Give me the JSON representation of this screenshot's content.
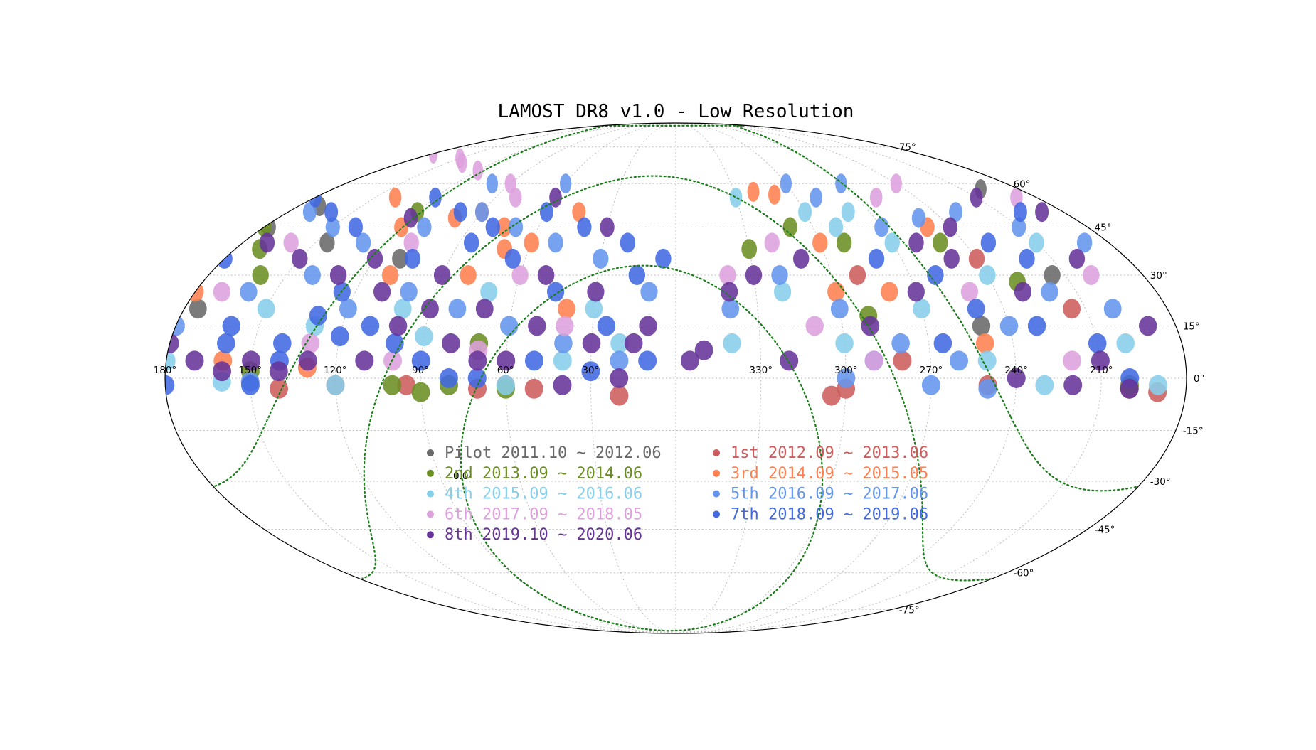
{
  "chart_data": {
    "type": "scatter",
    "projection": "mollweide",
    "title": "LAMOST DR8 v1.0 - Low Resolution",
    "grid": true,
    "galactic_plane_label": "0.0",
    "lon_ticks": [
      {
        "value": 330,
        "label": "330°"
      },
      {
        "value": 300,
        "label": "300°"
      },
      {
        "value": 270,
        "label": "270°"
      },
      {
        "value": 240,
        "label": "240°"
      },
      {
        "value": 210,
        "label": "210°"
      },
      {
        "value": 180,
        "label": "180°"
      },
      {
        "value": 150,
        "label": "150°"
      },
      {
        "value": 120,
        "label": "120°"
      },
      {
        "value": 90,
        "label": "90°"
      },
      {
        "value": 60,
        "label": "60°"
      },
      {
        "value": 30,
        "label": "30°"
      }
    ],
    "lat_ticks": [
      {
        "value": 75,
        "label": "75°"
      },
      {
        "value": 60,
        "label": "60°"
      },
      {
        "value": 45,
        "label": "45°"
      },
      {
        "value": 30,
        "label": "30°"
      },
      {
        "value": 15,
        "label": "15°"
      },
      {
        "value": 0,
        "label": "0°"
      },
      {
        "value": -15,
        "label": "-15°"
      },
      {
        "value": -30,
        "label": "-30°"
      },
      {
        "value": -45,
        "label": "-45°"
      },
      {
        "value": -60,
        "label": "-60°"
      },
      {
        "value": -75,
        "label": "-75°"
      }
    ],
    "legend_placement": "center",
    "series": [
      {
        "name": "Pilot 2011.10 ~ 2012.06",
        "color": "#696969",
        "points": [
          [
            170,
            52
          ],
          [
            178,
            45
          ],
          [
            175,
            20
          ],
          [
            200,
            58
          ],
          [
            145,
            40
          ],
          [
            110,
            35
          ],
          [
            250,
            15
          ],
          [
            215,
            30
          ]
        ]
      },
      {
        "name": "1st 2012.09 ~ 2013.06",
        "color": "#cd5c5c",
        "points": [
          [
            300,
            -3
          ],
          [
            305,
            -5
          ],
          [
            250,
            -2
          ],
          [
            190,
            -4
          ],
          [
            200,
            -3
          ],
          [
            140,
            -3
          ],
          [
            120,
            -2
          ],
          [
            70,
            -3
          ],
          [
            50,
            -3
          ],
          [
            20,
            -5
          ],
          [
            280,
            5
          ],
          [
            215,
            20
          ],
          [
            290,
            30
          ],
          [
            60,
            -2
          ],
          [
            240,
            35
          ],
          [
            95,
            -2
          ]
        ]
      },
      {
        "name": "2nd 2013.09 ~ 2014.06",
        "color": "#6b8e23",
        "points": [
          [
            180,
            45
          ],
          [
            170,
            38
          ],
          [
            250,
            40
          ],
          [
            290,
            40
          ],
          [
            90,
            -4
          ],
          [
            60,
            -3
          ],
          [
            80,
            -2
          ],
          [
            150,
            2
          ],
          [
            330,
            38
          ],
          [
            310,
            45
          ],
          [
            230,
            28
          ],
          [
            120,
            50
          ],
          [
            200,
            -2
          ],
          [
            100,
            -2
          ],
          [
            290,
            18
          ],
          [
            70,
            10
          ],
          [
            160,
            30
          ]
        ]
      },
      {
        "name": "3rd 2014.09 ~ 2015.05",
        "color": "#ff7f50",
        "points": [
          [
            320,
            57
          ],
          [
            310,
            56
          ],
          [
            100,
            48
          ],
          [
            90,
            50
          ],
          [
            120,
            45
          ],
          [
            250,
            45
          ],
          [
            60,
            40
          ],
          [
            70,
            38
          ],
          [
            180,
            25
          ],
          [
            250,
            10
          ],
          [
            160,
            5
          ],
          [
            280,
            25
          ],
          [
            110,
            30
          ],
          [
            40,
            20
          ],
          [
            300,
            40
          ],
          [
            130,
            3
          ],
          [
            300,
            25
          ],
          [
            140,
            55
          ],
          [
            80,
            30
          ],
          [
            45,
            50
          ],
          [
            75,
            45
          ]
        ]
      },
      {
        "name": "4th 2015.09 ~ 2016.06",
        "color": "#87ceeb",
        "points": [
          [
            330,
            55
          ],
          [
            300,
            50
          ],
          [
            290,
            45
          ],
          [
            280,
            50
          ],
          [
            270,
            20
          ],
          [
            250,
            5
          ],
          [
            230,
            -2
          ],
          [
            200,
            10
          ],
          [
            160,
            -1
          ],
          [
            130,
            15
          ],
          [
            100,
            20
          ],
          [
            70,
            25
          ],
          [
            40,
            5
          ],
          [
            20,
            10
          ],
          [
            340,
            10
          ],
          [
            300,
            10
          ],
          [
            240,
            30
          ],
          [
            210,
            40
          ],
          [
            180,
            5
          ],
          [
            150,
            20
          ],
          [
            120,
            -2
          ],
          [
            90,
            12
          ],
          [
            60,
            -2
          ],
          [
            320,
            25
          ],
          [
            270,
            40
          ],
          [
            190,
            -2
          ],
          [
            30,
            20
          ]
        ]
      },
      {
        "name": "5th 2016.09 ~ 2017.06",
        "color": "#6495ed",
        "points": [
          [
            300,
            60
          ],
          [
            290,
            55
          ],
          [
            270,
            45
          ],
          [
            250,
            48
          ],
          [
            230,
            50
          ],
          [
            210,
            45
          ],
          [
            190,
            40
          ],
          [
            170,
            50
          ],
          [
            150,
            45
          ],
          [
            130,
            40
          ],
          [
            110,
            45
          ],
          [
            90,
            50
          ],
          [
            70,
            45
          ],
          [
            50,
            40
          ],
          [
            30,
            35
          ],
          [
            10,
            25
          ],
          [
            340,
            20
          ],
          [
            320,
            30
          ],
          [
            300,
            20
          ],
          [
            280,
            10
          ],
          [
            260,
            5
          ],
          [
            240,
            15
          ],
          [
            220,
            25
          ],
          [
            200,
            20
          ],
          [
            180,
            15
          ],
          [
            160,
            25
          ],
          [
            140,
            30
          ],
          [
            120,
            20
          ],
          [
            100,
            25
          ],
          [
            80,
            20
          ],
          [
            60,
            15
          ],
          [
            40,
            10
          ],
          [
            20,
            5
          ],
          [
            300,
            0
          ],
          [
            290,
            5
          ],
          [
            270,
            -2
          ],
          [
            250,
            -3
          ],
          [
            150,
            -1
          ],
          [
            60,
            60
          ],
          [
            100,
            60
          ],
          [
            270,
            60
          ]
        ]
      },
      {
        "name": "6th 2017.09 ~ 2018.05",
        "color": "#dda0dd",
        "points": [
          [
            180,
            72
          ],
          [
            150,
            70
          ],
          [
            140,
            68
          ],
          [
            120,
            65
          ],
          [
            90,
            60
          ],
          [
            240,
            60
          ],
          [
            260,
            55
          ],
          [
            200,
            30
          ],
          [
            170,
            25
          ],
          [
            130,
            10
          ],
          [
            100,
            5
          ],
          [
            70,
            8
          ],
          [
            40,
            15
          ],
          [
            310,
            15
          ],
          [
            290,
            5
          ],
          [
            220,
            5
          ],
          [
            160,
            40
          ],
          [
            110,
            40
          ],
          [
            60,
            30
          ],
          [
            340,
            30
          ],
          [
            320,
            40
          ],
          [
            250,
            25
          ],
          [
            80,
            55
          ],
          [
            190,
            55
          ]
        ]
      },
      {
        "name": "7th 2018.09 ~ 2019.06",
        "color": "#4169e1",
        "points": [
          [
            200,
            50
          ],
          [
            180,
            55
          ],
          [
            160,
            50
          ],
          [
            140,
            45
          ],
          [
            120,
            55
          ],
          [
            100,
            50
          ],
          [
            80,
            45
          ],
          [
            60,
            50
          ],
          [
            40,
            45
          ],
          [
            20,
            40
          ],
          [
            230,
            40
          ],
          [
            220,
            35
          ],
          [
            180,
            35
          ],
          [
            160,
            15
          ],
          [
            140,
            10
          ],
          [
            120,
            12
          ],
          [
            110,
            15
          ],
          [
            100,
            10
          ],
          [
            90,
            5
          ],
          [
            80,
            0
          ],
          [
            70,
            0
          ],
          [
            50,
            5
          ],
          [
            30,
            2
          ],
          [
            10,
            5
          ],
          [
            250,
            20
          ],
          [
            260,
            30
          ],
          [
            230,
            15
          ],
          [
            210,
            10
          ],
          [
            200,
            0
          ],
          [
            180,
            -2
          ],
          [
            160,
            10
          ],
          [
            150,
            -2
          ],
          [
            140,
            5
          ],
          [
            130,
            18
          ],
          [
            125,
            25
          ],
          [
            105,
            35
          ],
          [
            85,
            40
          ],
          [
            65,
            35
          ],
          [
            45,
            25
          ],
          [
            25,
            15
          ],
          [
            15,
            30
          ],
          [
            5,
            35
          ],
          [
            280,
            35
          ],
          [
            265,
            10
          ]
        ]
      },
      {
        "name": "8th 2019.10 ~ 2020.06",
        "color": "#663399",
        "points": [
          [
            210,
            55
          ],
          [
            190,
            50
          ],
          [
            170,
            40
          ],
          [
            150,
            35
          ],
          [
            130,
            30
          ],
          [
            110,
            25
          ],
          [
            90,
            30
          ],
          [
            70,
            20
          ],
          [
            50,
            15
          ],
          [
            30,
            10
          ],
          [
            10,
            15
          ],
          [
            350,
            8
          ],
          [
            340,
            25
          ],
          [
            330,
            30
          ],
          [
            310,
            35
          ],
          [
            290,
            15
          ],
          [
            270,
            25
          ],
          [
            250,
            35
          ],
          [
            230,
            25
          ],
          [
            210,
            5
          ],
          [
            190,
            15
          ],
          [
            170,
            5
          ],
          [
            150,
            5
          ],
          [
            130,
            5
          ],
          [
            110,
            5
          ],
          [
            90,
            20
          ],
          [
            70,
            5
          ],
          [
            50,
            30
          ],
          [
            30,
            25
          ],
          [
            15,
            10
          ],
          [
            240,
            0
          ],
          [
            220,
            -2
          ],
          [
            200,
            -3
          ],
          [
            180,
            10
          ],
          [
            160,
            2
          ],
          [
            140,
            2
          ],
          [
            120,
            35
          ],
          [
            100,
            15
          ],
          [
            80,
            10
          ],
          [
            60,
            5
          ],
          [
            40,
            -2
          ],
          [
            20,
            0
          ],
          [
            355,
            5
          ],
          [
            320,
            5
          ],
          [
            260,
            40
          ],
          [
            240,
            45
          ],
          [
            200,
            35
          ],
          [
            120,
            48
          ],
          [
            60,
            55
          ],
          [
            30,
            45
          ]
        ]
      }
    ]
  }
}
